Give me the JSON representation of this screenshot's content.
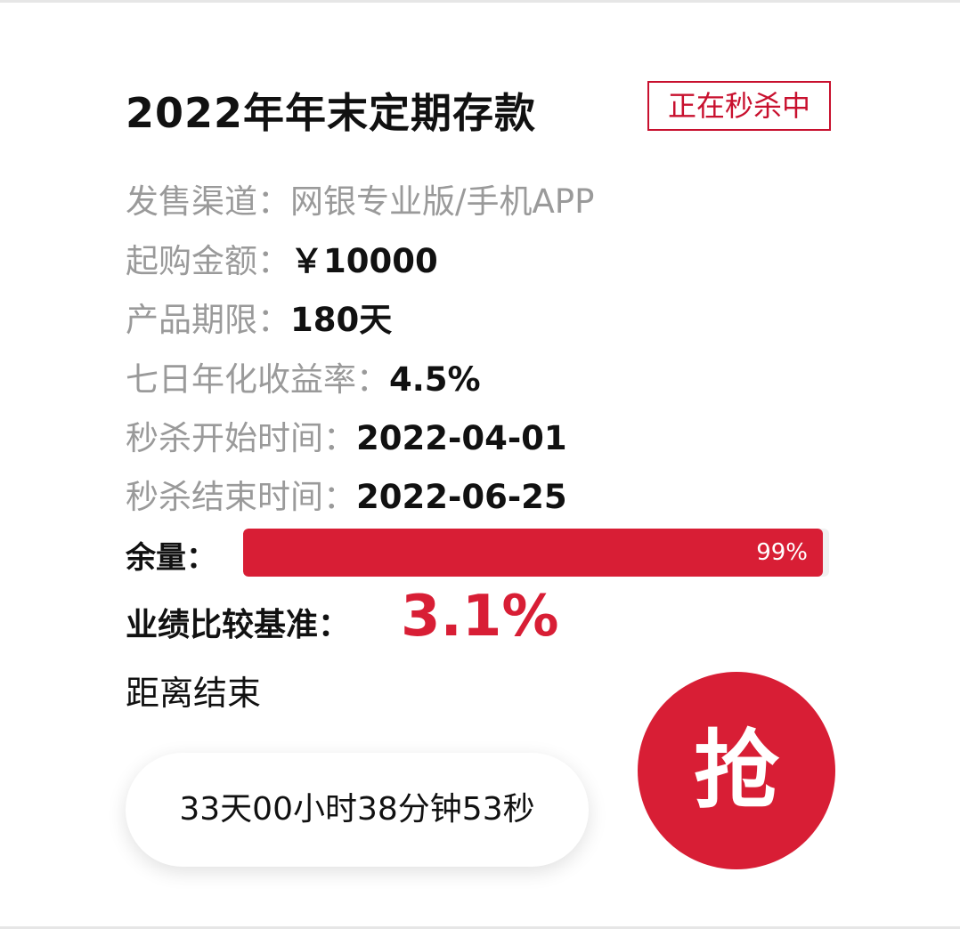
{
  "product": {
    "title": "2022年年末定期存款",
    "badge": "正在秒杀中"
  },
  "details": [
    {
      "label": "发售渠道：",
      "value": "网银专业版/手机APP"
    },
    {
      "label": "起购金额：",
      "value": "￥10000"
    },
    {
      "label": "产品期限：",
      "value": "180天"
    },
    {
      "label": "七日年化收益率：",
      "value": "4.5%"
    },
    {
      "label": "秒杀开始时间：",
      "value": "2022-04-01"
    },
    {
      "label": "秒杀结束时间：",
      "value": "2022-06-25"
    }
  ],
  "stock": {
    "label": "余量：",
    "percent": 99,
    "percent_text": "99%"
  },
  "benchmark": {
    "label": "业绩比较基准：",
    "value": "3.1%"
  },
  "countdown": {
    "label": "距离结束",
    "value": "33天00小时38分钟53秒"
  },
  "action": {
    "grab_label": "抢"
  },
  "colors": {
    "accent": "#d81e35",
    "badge": "#c8102e",
    "label_gray": "#9a9a9a"
  }
}
